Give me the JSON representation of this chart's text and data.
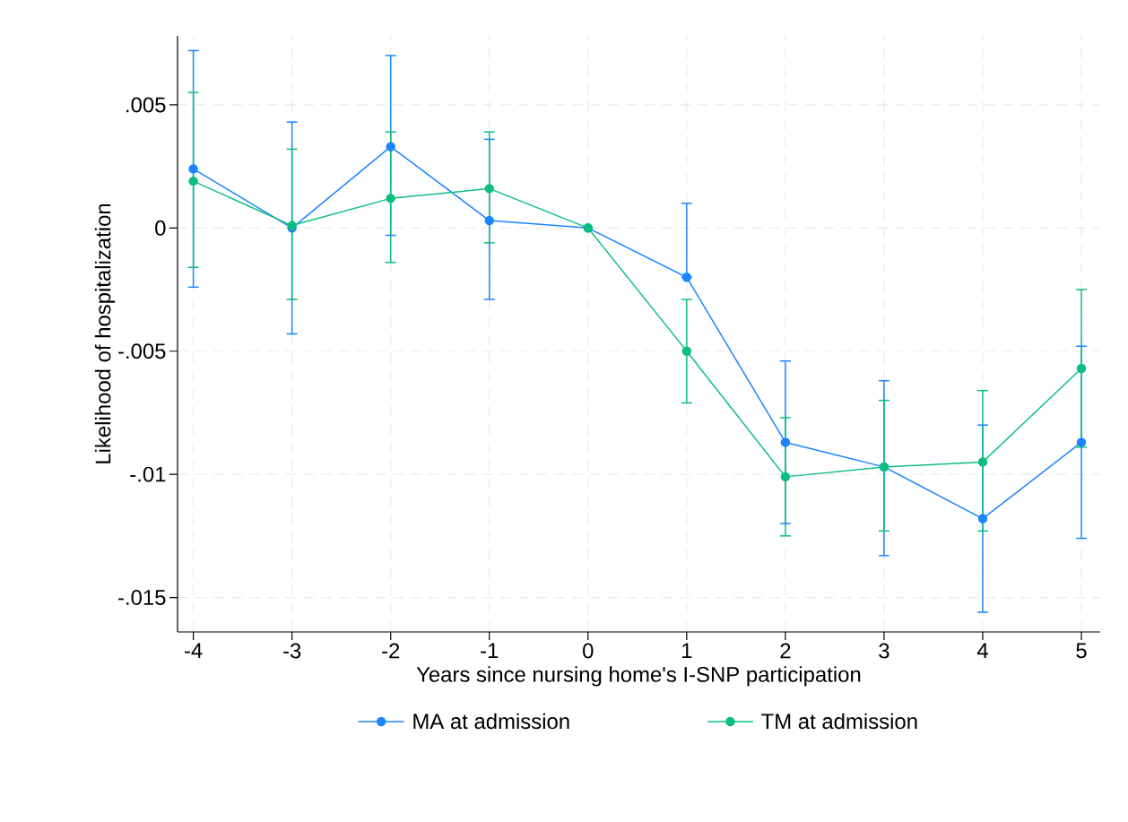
{
  "chart_data": {
    "type": "line",
    "xlabel": "Years since nursing home's I-SNP participation",
    "ylabel": "Likelihood of hospitalization",
    "x": [
      -4,
      -3,
      -2,
      -1,
      0,
      1,
      2,
      3,
      4,
      5
    ],
    "series": [
      {
        "name": "MA at admission",
        "color": "#1a85ff",
        "values": [
          0.0024,
          0.0,
          0.0033,
          0.0003,
          0.0,
          -0.002,
          -0.0087,
          -0.0097,
          -0.0118,
          -0.0087
        ],
        "errors": [
          [
            -0.0024,
            0.0072
          ],
          [
            -0.0043,
            0.0043
          ],
          [
            -0.0003,
            0.007
          ],
          [
            -0.0029,
            0.0036
          ],
          null,
          [
            -0.002,
            0.001
          ],
          [
            -0.012,
            -0.0054
          ],
          [
            -0.0133,
            -0.0062
          ],
          [
            -0.0156,
            -0.008
          ],
          [
            -0.0126,
            -0.0048
          ]
        ]
      },
      {
        "name": "TM at admission",
        "color": "#0cbf80",
        "values": [
          0.0019,
          0.0001,
          0.0012,
          0.0016,
          0.0,
          -0.005,
          -0.0101,
          -0.0097,
          -0.0095,
          -0.0057
        ],
        "errors": [
          [
            -0.0016,
            0.0055
          ],
          [
            -0.0029,
            0.0032
          ],
          [
            -0.0014,
            0.0039
          ],
          [
            -0.0006,
            0.0039
          ],
          null,
          [
            -0.0071,
            -0.0029
          ],
          [
            -0.0125,
            -0.0077
          ],
          [
            -0.0123,
            -0.007
          ],
          [
            -0.0123,
            -0.0066
          ],
          [
            -0.0089,
            -0.0025
          ]
        ]
      }
    ],
    "xlim": [
      -4.16,
      5.19
    ],
    "ylim": [
      -0.0164,
      0.0078
    ],
    "xticks": [
      -4,
      -3,
      -2,
      -1,
      0,
      1,
      2,
      3,
      4,
      5
    ],
    "yticks": [
      {
        "value": -0.015,
        "label": "-.015"
      },
      {
        "value": -0.01,
        "label": "-.01"
      },
      {
        "value": -0.005,
        "label": "-.005"
      },
      {
        "value": 0,
        "label": "0"
      },
      {
        "value": 0.005,
        "label": ".005"
      }
    ],
    "grid": true,
    "legend": "bottom",
    "marker": "circle",
    "line_style": "solid"
  }
}
